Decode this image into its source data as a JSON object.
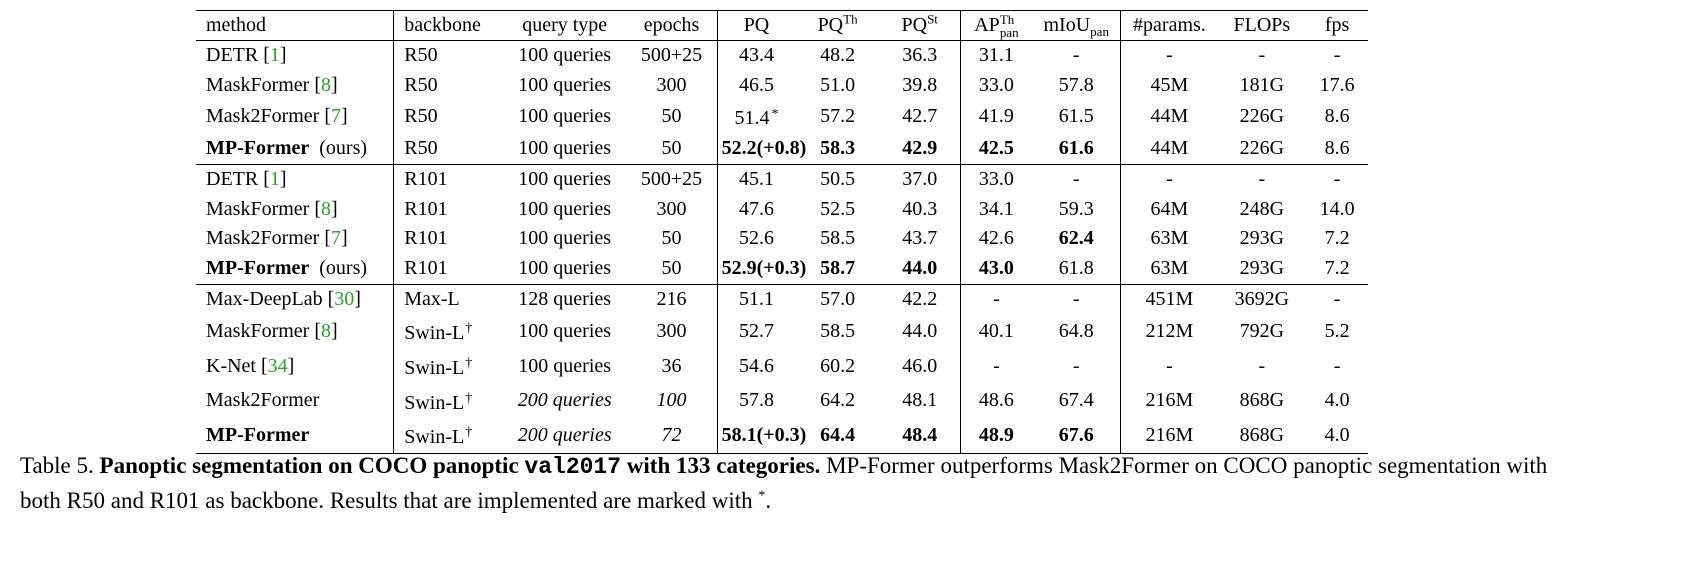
{
  "table": {
    "headers": {
      "method": "method",
      "backbone": "backbone",
      "query_type": "query type",
      "epochs": "epochs",
      "pq": "PQ",
      "pq_th_base": "PQ",
      "pq_th_sup": "Th",
      "pq_st_base": "PQ",
      "pq_st_sup": "St",
      "ap_base": "AP",
      "ap_sup": "Th",
      "ap_sub": "pan",
      "miou_base": "mIoU",
      "miou_sub": "pan",
      "params": "#params.",
      "flops": "FLOPs",
      "fps": "fps"
    },
    "rows": [
      {
        "name": "DETR",
        "cite": "1",
        "suffix": "",
        "bold": false,
        "backbone": "R50",
        "dagger": false,
        "query": "100 queries",
        "epochs": "500+25",
        "italic": false,
        "pq": "43.4",
        "pq_star": false,
        "pq_bold": false,
        "pq_th": "48.2",
        "pq_th_bold": false,
        "pq_st": "36.3",
        "pq_st_bold": false,
        "ap": "31.1",
        "ap_bold": false,
        "miou": "-",
        "miou_bold": false,
        "params": "-",
        "flops": "-",
        "fps": "-"
      },
      {
        "name": "MaskFormer",
        "cite": "8",
        "suffix": "",
        "bold": false,
        "backbone": "R50",
        "dagger": false,
        "query": "100 queries",
        "epochs": "300",
        "italic": false,
        "pq": "46.5",
        "pq_star": false,
        "pq_bold": false,
        "pq_th": "51.0",
        "pq_th_bold": false,
        "pq_st": "39.8",
        "pq_st_bold": false,
        "ap": "33.0",
        "ap_bold": false,
        "miou": "57.8",
        "miou_bold": false,
        "params": "45M",
        "flops": "181G",
        "fps": "17.6"
      },
      {
        "name": "Mask2Former",
        "cite": "7",
        "suffix": "",
        "bold": false,
        "backbone": "R50",
        "dagger": false,
        "query": "100 queries",
        "epochs": "50",
        "italic": false,
        "pq": "51.4",
        "pq_star": true,
        "pq_bold": false,
        "pq_th": "57.2",
        "pq_th_bold": false,
        "pq_st": "42.7",
        "pq_st_bold": false,
        "ap": "41.9",
        "ap_bold": false,
        "miou": "61.5",
        "miou_bold": false,
        "params": "44M",
        "flops": "226G",
        "fps": "8.6"
      },
      {
        "name": "MP-Former",
        "cite": "",
        "suffix": "(ours)",
        "bold": true,
        "backbone": "R50",
        "dagger": false,
        "query": "100 queries",
        "epochs": "50",
        "italic": false,
        "pq": "52.2(+0.8)",
        "pq_star": false,
        "pq_bold": true,
        "pq_th": "58.3",
        "pq_th_bold": true,
        "pq_st": "42.9",
        "pq_st_bold": true,
        "ap": "42.5",
        "ap_bold": true,
        "miou": "61.6",
        "miou_bold": true,
        "params": "44M",
        "flops": "226G",
        "fps": "8.6",
        "group_end": true
      },
      {
        "name": "DETR",
        "cite": "1",
        "suffix": "",
        "bold": false,
        "backbone": "R101",
        "dagger": false,
        "query": "100 queries",
        "epochs": "500+25",
        "italic": false,
        "pq": "45.1",
        "pq_star": false,
        "pq_bold": false,
        "pq_th": "50.5",
        "pq_th_bold": false,
        "pq_st": "37.0",
        "pq_st_bold": false,
        "ap": "33.0",
        "ap_bold": false,
        "miou": "-",
        "miou_bold": false,
        "params": "-",
        "flops": "-",
        "fps": "-"
      },
      {
        "name": "MaskFormer",
        "cite": "8",
        "suffix": "",
        "bold": false,
        "backbone": "R101",
        "dagger": false,
        "query": "100 queries",
        "epochs": "300",
        "italic": false,
        "pq": "47.6",
        "pq_star": false,
        "pq_bold": false,
        "pq_th": "52.5",
        "pq_th_bold": false,
        "pq_st": "40.3",
        "pq_st_bold": false,
        "ap": "34.1",
        "ap_bold": false,
        "miou": "59.3",
        "miou_bold": false,
        "params": "64M",
        "flops": "248G",
        "fps": "14.0"
      },
      {
        "name": "Mask2Former",
        "cite": "7",
        "suffix": "",
        "bold": false,
        "backbone": "R101",
        "dagger": false,
        "query": "100 queries",
        "epochs": "50",
        "italic": false,
        "pq": "52.6",
        "pq_star": false,
        "pq_bold": false,
        "pq_th": "58.5",
        "pq_th_bold": false,
        "pq_st": "43.7",
        "pq_st_bold": false,
        "ap": "42.6",
        "ap_bold": false,
        "miou": "62.4",
        "miou_bold": true,
        "params": "63M",
        "flops": "293G",
        "fps": "7.2"
      },
      {
        "name": "MP-Former",
        "cite": "",
        "suffix": "(ours)",
        "bold": true,
        "backbone": "R101",
        "dagger": false,
        "query": "100 queries",
        "epochs": "50",
        "italic": false,
        "pq": "52.9(+0.3)",
        "pq_star": false,
        "pq_bold": true,
        "pq_th": "58.7",
        "pq_th_bold": true,
        "pq_st": "44.0",
        "pq_st_bold": true,
        "ap": "43.0",
        "ap_bold": true,
        "miou": "61.8",
        "miou_bold": false,
        "params": "63M",
        "flops": "293G",
        "fps": "7.2",
        "group_end": true
      },
      {
        "name": "Max-DeepLab",
        "cite": "30",
        "suffix": "",
        "bold": false,
        "backbone": "Max-L",
        "dagger": false,
        "query": "128 queries",
        "epochs": "216",
        "italic": false,
        "pq": "51.1",
        "pq_star": false,
        "pq_bold": false,
        "pq_th": "57.0",
        "pq_th_bold": false,
        "pq_st": "42.2",
        "pq_st_bold": false,
        "ap": "-",
        "ap_bold": false,
        "miou": "-",
        "miou_bold": false,
        "params": "451M",
        "flops": "3692G",
        "fps": "-"
      },
      {
        "name": "MaskFormer",
        "cite": "8",
        "suffix": "",
        "bold": false,
        "backbone": "Swin-L",
        "dagger": true,
        "query": "100 queries",
        "epochs": "300",
        "italic": false,
        "pq": "52.7",
        "pq_star": false,
        "pq_bold": false,
        "pq_th": "58.5",
        "pq_th_bold": false,
        "pq_st": "44.0",
        "pq_st_bold": false,
        "ap": "40.1",
        "ap_bold": false,
        "miou": "64.8",
        "miou_bold": false,
        "params": "212M",
        "flops": "792G",
        "fps": "5.2"
      },
      {
        "name": "K-Net",
        "cite": "34",
        "suffix": "",
        "bold": false,
        "backbone": "Swin-L",
        "dagger": true,
        "query": "100 queries",
        "epochs": "36",
        "italic": false,
        "pq": "54.6",
        "pq_star": false,
        "pq_bold": false,
        "pq_th": "60.2",
        "pq_th_bold": false,
        "pq_st": "46.0",
        "pq_st_bold": false,
        "ap": "-",
        "ap_bold": false,
        "miou": "-",
        "miou_bold": false,
        "params": "-",
        "flops": "-",
        "fps": "-"
      },
      {
        "name": "Mask2Former",
        "cite": "",
        "suffix": "",
        "bold": false,
        "backbone": "Swin-L",
        "dagger": true,
        "query": "200 queries",
        "epochs": "100",
        "italic": true,
        "pq": "57.8",
        "pq_star": false,
        "pq_bold": false,
        "pq_th": "64.2",
        "pq_th_bold": false,
        "pq_st": "48.1",
        "pq_st_bold": false,
        "ap": "48.6",
        "ap_bold": false,
        "miou": "67.4",
        "miou_bold": false,
        "params": "216M",
        "flops": "868G",
        "fps": "4.0"
      },
      {
        "name": "MP-Former",
        "cite": "",
        "suffix": "",
        "bold": true,
        "backbone": "Swin-L",
        "dagger": true,
        "query": "200 queries",
        "epochs": "72",
        "italic": true,
        "pq": "58.1(+0.3)",
        "pq_star": false,
        "pq_bold": true,
        "pq_th": "64.4",
        "pq_th_bold": true,
        "pq_st": "48.4",
        "pq_st_bold": true,
        "ap": "48.9",
        "ap_bold": true,
        "miou": "67.6",
        "miou_bold": true,
        "params": "216M",
        "flops": "868G",
        "fps": "4.0"
      }
    ]
  },
  "caption": {
    "label": "Table 5.",
    "bold_part1": "Panoptic segmentation on COCO panoptic",
    "mono": "val2017",
    "bold_part2": "with 133 categories.",
    "text": "MP-Former outperforms Mask2Former on COCO panoptic segmentation with both R50 and R101 as backbone. Results that are implemented are marked with",
    "star": "*",
    "end": "."
  }
}
